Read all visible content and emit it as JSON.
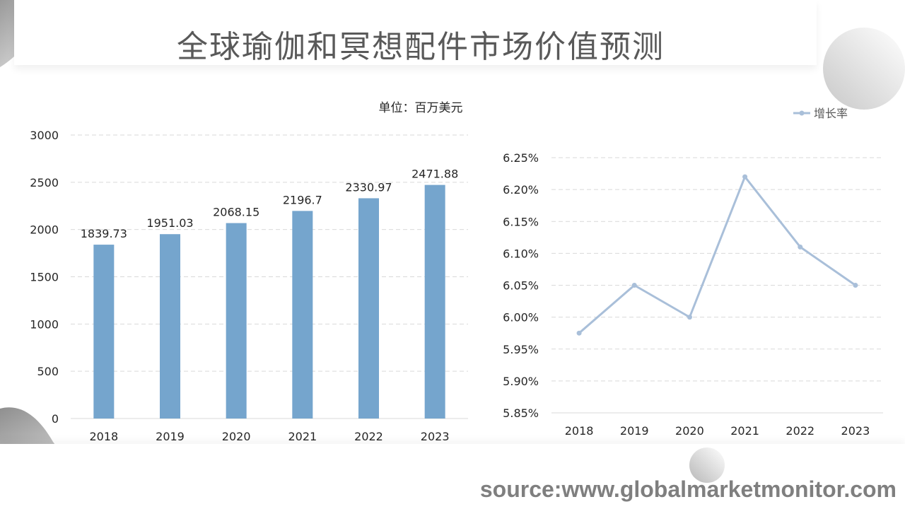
{
  "title": "全球瑜伽和冥想配件市场价值预测",
  "source": "source:www.globalmarketmonitor.com",
  "colors": {
    "bar": "#75a5cd",
    "line": "#a9bfd9",
    "grid": "#d9d9d9",
    "text": "#262626",
    "title": "#595959"
  },
  "chart_data": [
    {
      "type": "bar",
      "unit_label": "单位：百万美元",
      "categories": [
        "2018",
        "2019",
        "2020",
        "2021",
        "2022",
        "2023"
      ],
      "values": [
        1839.73,
        1951.03,
        2068.15,
        2196.7,
        2330.97,
        2471.88
      ],
      "value_labels": [
        "1839.73",
        "1951.03",
        "2068.15",
        "2196.7",
        "2330.97",
        "2471.88"
      ],
      "ylim": [
        0,
        3000
      ],
      "yticks": [
        "0",
        "500",
        "1000",
        "1500",
        "2000",
        "2500",
        "3000"
      ],
      "ytick_values": [
        0,
        500,
        1000,
        1500,
        2000,
        2500,
        3000
      ],
      "grid": true
    },
    {
      "type": "line",
      "series_name": "增长率",
      "legend_position": "top-right",
      "categories": [
        "2018",
        "2019",
        "2020",
        "2021",
        "2022",
        "2023"
      ],
      "values": [
        5.975,
        6.05,
        6.0,
        6.22,
        6.11,
        6.05
      ],
      "ylim": [
        5.85,
        6.25
      ],
      "yticks": [
        "5.85%",
        "5.90%",
        "5.95%",
        "6.00%",
        "6.05%",
        "6.10%",
        "6.15%",
        "6.20%",
        "6.25%"
      ],
      "ytick_values": [
        5.85,
        5.9,
        5.95,
        6.0,
        6.05,
        6.1,
        6.15,
        6.2,
        6.25
      ],
      "grid": true
    }
  ]
}
